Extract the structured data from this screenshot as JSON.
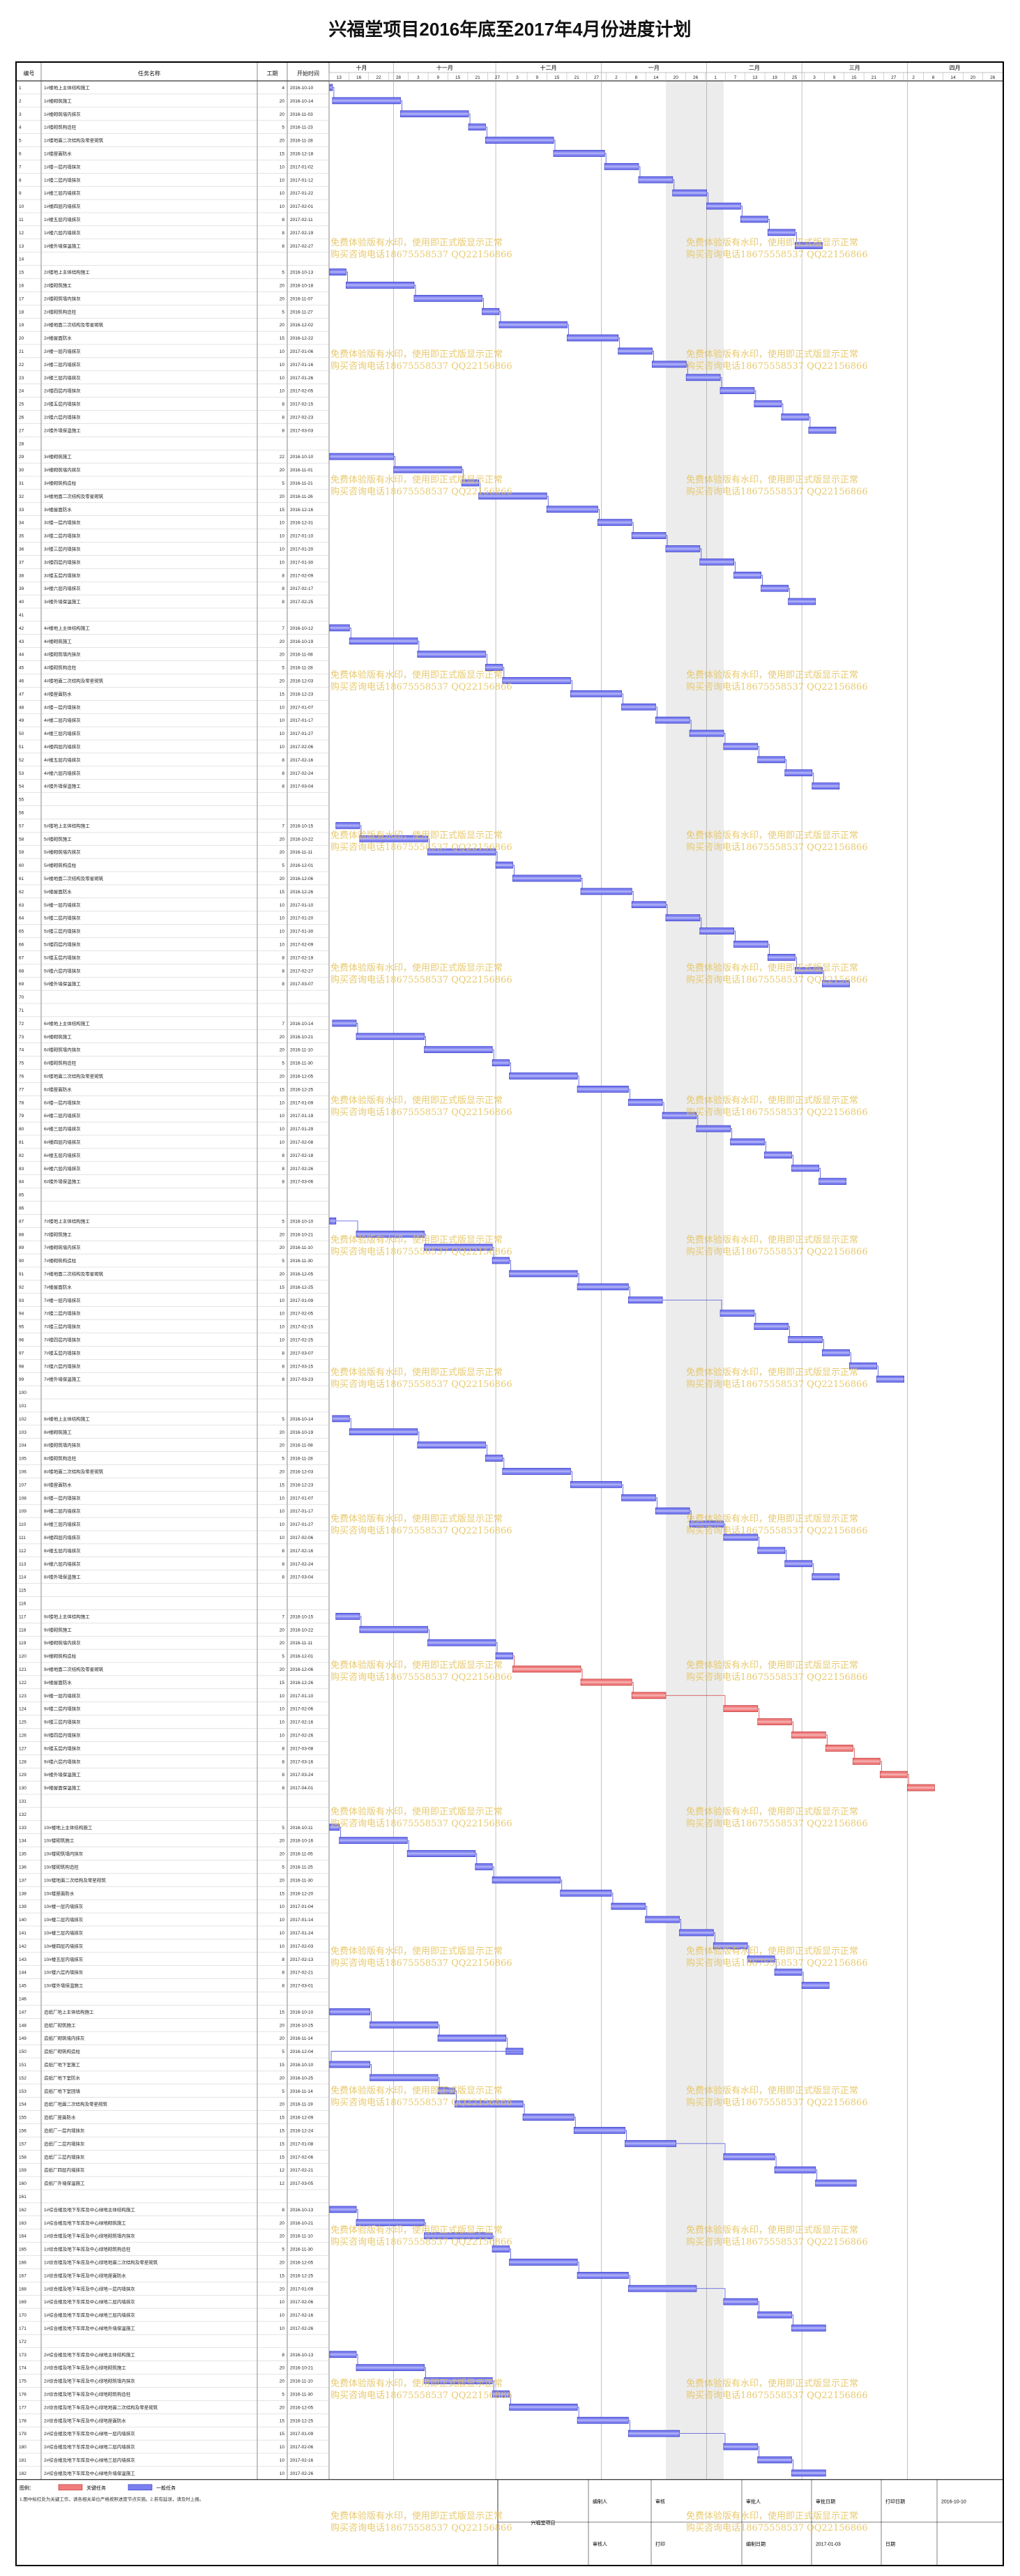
{
  "title": "兴福堂项目2016年底至2017年4月份进度计划",
  "columns": {
    "id": "编号",
    "name": "任务名称",
    "duration": "工期",
    "start": "开始时间"
  },
  "months": [
    "十月",
    "十一月",
    "十二月",
    "一月",
    "二月",
    "三月",
    "四月"
  ],
  "day_ticks": [
    "13",
    "16",
    "22",
    "28",
    "3",
    "9",
    "15",
    "21",
    "27",
    "3",
    "9",
    "15",
    "21",
    "27",
    "2",
    "8",
    "14",
    "20",
    "26",
    "1",
    "7",
    "13",
    "19",
    "25",
    "3",
    "9",
    "15",
    "21",
    "27",
    "2",
    "8",
    "14",
    "20",
    "26"
  ],
  "watermark": [
    "免费体验版有水印，使用即正式版显示正常",
    "购买咨询电话18675558537 QQ22156866"
  ],
  "colors": {
    "bar_normal": "#7b7ef0",
    "bar_critical": "#f07b7b",
    "nonworking": "#ececec"
  },
  "legend": {
    "label": "图例：",
    "critical_label": "关键任务",
    "normal_label": "一般任务"
  },
  "footer_note": "1.图中标红处为关键工作，请各相关单位严格按照进度节点实施。2.若有延误，请及时上报。",
  "footer": {
    "c1": "编制人",
    "c2": "审核",
    "c3": "审批日期",
    "c4": "打印日期",
    "c5": "2016-10-10",
    "c6": "审批人",
    "c7": "审核人",
    "c8": "编制日期",
    "c9": "2017-01-03",
    "c10": "日期",
    "c11": "打印",
    "center": "兴福堂项目"
  },
  "chart_data": {
    "type": "gantt",
    "title": "兴福堂项目2016年底至2017年4月份进度计划",
    "x_range": [
      "2016-10-13",
      "2017-04-29"
    ],
    "nonworking_band": [
      "2017-01-20",
      "2017-02-06"
    ],
    "groups": [
      {
        "first_id": 1,
        "rows": [
          [
            "1#楼地上主体结构施工",
            4,
            "2016-10-10"
          ],
          [
            "1#楼砌筑施工",
            20,
            "2016-10-14"
          ],
          [
            "1#楼砌筑墙内抹灰",
            20,
            "2016-11-03"
          ],
          [
            "1#楼砌筑构造柱",
            5,
            "2016-11-23"
          ],
          [
            "1#楼地面二次结构及零星砌筑",
            20,
            "2016-11-28"
          ],
          [
            "1#楼屋面防水",
            15,
            "2016-12-18"
          ],
          [
            "1#楼一层内墙抹灰",
            10,
            "2017-01-02"
          ],
          [
            "1#楼二层内墙抹灰",
            10,
            "2017-01-12"
          ],
          [
            "1#楼三层内墙抹灰",
            10,
            "2017-01-22"
          ],
          [
            "1#楼四层内墙抹灰",
            10,
            "2017-02-01"
          ],
          [
            "1#楼五层内墙抹灰",
            8,
            "2017-02-11"
          ],
          [
            "1#楼六层内墙抹灰",
            8,
            "2017-02-19"
          ],
          [
            "1#楼外墙保温施工",
            8,
            "2017-02-27"
          ]
        ]
      },
      {
        "first_id": 15,
        "rows": [
          [
            "2#楼地上主体结构施工",
            5,
            "2016-10-13"
          ],
          [
            "2#楼砌筑施工",
            20,
            "2016-10-18"
          ],
          [
            "2#楼砌筑墙内抹灰",
            20,
            "2016-11-07"
          ],
          [
            "2#楼砌筑构造柱",
            5,
            "2016-11-27"
          ],
          [
            "2#楼地面二次结构及零星砌筑",
            20,
            "2016-12-02"
          ],
          [
            "2#楼屋面防水",
            15,
            "2016-12-22"
          ],
          [
            "2#楼一层内墙抹灰",
            10,
            "2017-01-06"
          ],
          [
            "2#楼二层内墙抹灰",
            10,
            "2017-01-16"
          ],
          [
            "2#楼三层内墙抹灰",
            10,
            "2017-01-26"
          ],
          [
            "2#楼四层内墙抹灰",
            10,
            "2017-02-05"
          ],
          [
            "2#楼五层内墙抹灰",
            8,
            "2017-02-15"
          ],
          [
            "2#楼六层内墙抹灰",
            8,
            "2017-02-23"
          ],
          [
            "2#楼外墙保温施工",
            8,
            "2017-03-03"
          ]
        ]
      },
      {
        "first_id": 29,
        "rows": [
          [
            "3#楼砌筑施工",
            22,
            "2016-10-10"
          ],
          [
            "3#楼砌筑墙内抹灰",
            20,
            "2016-11-01"
          ],
          [
            "3#楼砌筑构造柱",
            5,
            "2016-11-21"
          ],
          [
            "3#楼地面二次结构及零星砌筑",
            20,
            "2016-11-26"
          ],
          [
            "3#楼屋面防水",
            15,
            "2016-12-16"
          ],
          [
            "3#楼一层内墙抹灰",
            10,
            "2016-12-31"
          ],
          [
            "3#楼二层内墙抹灰",
            10,
            "2017-01-10"
          ],
          [
            "3#楼三层内墙抹灰",
            10,
            "2017-01-20"
          ],
          [
            "3#楼四层内墙抹灰",
            10,
            "2017-01-30"
          ],
          [
            "3#楼五层内墙抹灰",
            8,
            "2017-02-09"
          ],
          [
            "3#楼六层内墙抹灰",
            8,
            "2017-02-17"
          ],
          [
            "3#楼外墙保温施工",
            8,
            "2017-02-25"
          ]
        ]
      },
      {
        "first_id": 42,
        "rows": [
          [
            "4#楼地上主体结构施工",
            7,
            "2016-10-12"
          ],
          [
            "4#楼砌筑施工",
            20,
            "2016-10-19"
          ],
          [
            "4#楼砌筑墙内抹灰",
            20,
            "2016-11-08"
          ],
          [
            "4#楼砌筑构造柱",
            5,
            "2016-11-28"
          ],
          [
            "4#楼地面二次结构及零星砌筑",
            20,
            "2016-12-03"
          ],
          [
            "4#楼屋面防水",
            15,
            "2016-12-23"
          ],
          [
            "4#楼一层内墙抹灰",
            10,
            "2017-01-07"
          ],
          [
            "4#楼二层内墙抹灰",
            10,
            "2017-01-17"
          ],
          [
            "4#楼三层内墙抹灰",
            10,
            "2017-01-27"
          ],
          [
            "4#楼四层内墙抹灰",
            10,
            "2017-02-06"
          ],
          [
            "4#楼五层内墙抹灰",
            8,
            "2017-02-16"
          ],
          [
            "4#楼六层内墙抹灰",
            8,
            "2017-02-24"
          ],
          [
            "4#楼外墙保温施工",
            8,
            "2017-03-04"
          ]
        ]
      },
      {
        "first_id": 57,
        "rows": [
          [
            "5#楼地上主体结构施工",
            7,
            "2016-10-15"
          ],
          [
            "5#楼砌筑施工",
            20,
            "2016-10-22"
          ],
          [
            "5#楼砌筑墙内抹灰",
            20,
            "2016-11-11"
          ],
          [
            "5#楼砌筑构造柱",
            5,
            "2016-12-01"
          ],
          [
            "5#楼地面二次结构及零星砌筑",
            20,
            "2016-12-06"
          ],
          [
            "5#楼屋面防水",
            15,
            "2016-12-26"
          ],
          [
            "5#楼一层内墙抹灰",
            10,
            "2017-01-10"
          ],
          [
            "5#楼二层内墙抹灰",
            10,
            "2017-01-20"
          ],
          [
            "5#楼三层内墙抹灰",
            10,
            "2017-01-30"
          ],
          [
            "5#楼四层内墙抹灰",
            10,
            "2017-02-09"
          ],
          [
            "5#楼五层内墙抹灰",
            8,
            "2017-02-19"
          ],
          [
            "5#楼六层内墙抹灰",
            8,
            "2017-02-27"
          ],
          [
            "5#楼外墙保温施工",
            8,
            "2017-03-07"
          ]
        ]
      },
      {
        "first_id": 72,
        "rows": [
          [
            "6#楼地上主体结构施工",
            7,
            "2016-10-14"
          ],
          [
            "6#楼砌筑施工",
            20,
            "2016-10-21"
          ],
          [
            "6#楼砌筑墙内抹灰",
            20,
            "2016-11-10"
          ],
          [
            "6#楼砌筑构造柱",
            5,
            "2016-11-30"
          ],
          [
            "6#楼地面二次结构及零星砌筑",
            20,
            "2016-12-05"
          ],
          [
            "6#楼屋面防水",
            15,
            "2016-12-25"
          ],
          [
            "6#楼一层内墙抹灰",
            10,
            "2017-01-09"
          ],
          [
            "6#楼二层内墙抹灰",
            10,
            "2017-01-19"
          ],
          [
            "6#楼三层内墙抹灰",
            10,
            "2017-01-29"
          ],
          [
            "6#楼四层内墙抹灰",
            10,
            "2017-02-08"
          ],
          [
            "6#楼五层内墙抹灰",
            8,
            "2017-02-18"
          ],
          [
            "6#楼六层内墙抹灰",
            8,
            "2017-02-26"
          ],
          [
            "6#楼外墙保温施工",
            8,
            "2017-03-06"
          ]
        ]
      },
      {
        "first_id": 87,
        "rows": [
          [
            "7#楼地上主体结构施工",
            5,
            "2016-10-10"
          ],
          [
            "7#楼砌筑施工",
            20,
            "2016-10-21"
          ],
          [
            "7#楼砌筑墙内抹灰",
            20,
            "2016-11-10"
          ],
          [
            "7#楼砌筑构造柱",
            5,
            "2016-11-30"
          ],
          [
            "7#楼地面二次结构及零星砌筑",
            20,
            "2016-12-05"
          ],
          [
            "7#楼屋面防水",
            15,
            "2016-12-25"
          ],
          [
            "7#楼一层内墙抹灰",
            10,
            "2017-01-09"
          ],
          [
            "7#楼二层内墙抹灰",
            10,
            "2017-02-05"
          ],
          [
            "7#楼三层内墙抹灰",
            10,
            "2017-02-15"
          ],
          [
            "7#楼四层内墙抹灰",
            10,
            "2017-02-25"
          ],
          [
            "7#楼五层内墙抹灰",
            8,
            "2017-03-07"
          ],
          [
            "7#楼六层内墙抹灰",
            8,
            "2017-03-15"
          ],
          [
            "7#楼外墙保温施工",
            8,
            "2017-03-23"
          ]
        ]
      },
      {
        "first_id": 102,
        "rows": [
          [
            "8#楼地上主体结构施工",
            5,
            "2016-10-14"
          ],
          [
            "8#楼砌筑施工",
            20,
            "2016-10-19"
          ],
          [
            "8#楼砌筑墙内抹灰",
            20,
            "2016-11-08"
          ],
          [
            "8#楼砌筑构造柱",
            5,
            "2016-11-28"
          ],
          [
            "8#楼地面二次结构及零星砌筑",
            20,
            "2016-12-03"
          ],
          [
            "8#楼屋面防水",
            15,
            "2016-12-23"
          ],
          [
            "8#楼一层内墙抹灰",
            10,
            "2017-01-07"
          ],
          [
            "8#楼二层内墙抹灰",
            10,
            "2017-01-17"
          ],
          [
            "8#楼三层内墙抹灰",
            10,
            "2017-01-27"
          ],
          [
            "8#楼四层内墙抹灰",
            10,
            "2017-02-06"
          ],
          [
            "8#楼五层内墙抹灰",
            8,
            "2017-02-16"
          ],
          [
            "8#楼六层内墙抹灰",
            8,
            "2017-02-24"
          ],
          [
            "8#楼外墙保温施工",
            8,
            "2017-03-04"
          ]
        ]
      },
      {
        "first_id": 117,
        "rows": [
          [
            "9#楼地上主体结构施工",
            7,
            "2016-10-15"
          ],
          [
            "9#楼砌筑施工",
            20,
            "2016-10-22"
          ],
          [
            "9#楼砌筑墙内抹灰",
            20,
            "2016-11-11"
          ],
          [
            "9#楼砌筑构造柱",
            5,
            "2016-12-01"
          ],
          [
            "9#楼地面二次结构及零星砌筑",
            20,
            "2016-12-06",
            true
          ],
          [
            "9#楼屋面防水",
            15,
            "2016-12-26",
            true
          ],
          [
            "9#楼一层内墙抹灰",
            10,
            "2017-01-10",
            true
          ],
          [
            "9#楼二层内墙抹灰",
            10,
            "2017-02-06",
            true
          ],
          [
            "9#楼三层内墙抹灰",
            10,
            "2017-02-16",
            true
          ],
          [
            "9#楼四层内墙抹灰",
            10,
            "2017-02-26",
            true
          ],
          [
            "9#楼五层内墙抹灰",
            8,
            "2017-03-08",
            true
          ],
          [
            "9#楼六层内墙抹灰",
            8,
            "2017-03-16",
            true
          ],
          [
            "9#楼外墙保温施工",
            8,
            "2017-03-24",
            true
          ],
          [
            "9#楼屋面保温施工",
            8,
            "2017-04-01",
            true
          ]
        ]
      },
      {
        "first_id": 133,
        "rows": [
          [
            "10#楼地上主体结构施工",
            5,
            "2016-10-11"
          ],
          [
            "10#楼砌筑施工",
            20,
            "2016-10-16"
          ],
          [
            "10#楼砌筑墙内抹灰",
            20,
            "2016-11-05"
          ],
          [
            "10#楼砌筑构造柱",
            5,
            "2016-11-25"
          ],
          [
            "10#楼地面二次结构及零星砌筑",
            20,
            "2016-11-30"
          ],
          [
            "10#楼屋面防水",
            15,
            "2016-12-20"
          ],
          [
            "10#楼一层内墙抹灰",
            10,
            "2017-01-04"
          ],
          [
            "10#楼二层内墙抹灰",
            10,
            "2017-01-14"
          ],
          [
            "10#楼三层内墙抹灰",
            10,
            "2017-01-24"
          ],
          [
            "10#楼四层内墙抹灰",
            10,
            "2017-02-03"
          ],
          [
            "10#楼五层内墙抹灰",
            8,
            "2017-02-13"
          ],
          [
            "10#楼六层内墙抹灰",
            8,
            "2017-02-21"
          ],
          [
            "10#楼外墙保温施工",
            8,
            "2017-03-01"
          ]
        ]
      },
      {
        "first_id": 147,
        "rows": [
          [
            "造纸厂地上主体结构施工",
            15,
            "2016-10-10"
          ],
          [
            "造纸厂砌筑施工",
            20,
            "2016-10-25"
          ],
          [
            "造纸厂砌筑墙内抹灰",
            20,
            "2016-11-14"
          ],
          [
            "造纸厂砌筑构造柱",
            5,
            "2016-12-04"
          ],
          [
            "造纸厂地下室施工",
            15,
            "2016-10-10"
          ],
          [
            "造纸厂地下室防水",
            20,
            "2016-10-25"
          ],
          [
            "造纸厂地下室回填",
            5,
            "2016-11-14"
          ],
          [
            "造纸厂地面二次结构及零星砌筑",
            20,
            "2016-11-19"
          ],
          [
            "造纸厂屋面防水",
            15,
            "2016-12-09"
          ],
          [
            "造纸厂一层内墙抹灰",
            15,
            "2016-12-24"
          ],
          [
            "造纸厂二层内墙抹灰",
            15,
            "2017-01-08"
          ],
          [
            "造纸厂三层内墙抹灰",
            15,
            "2017-02-06"
          ],
          [
            "造纸厂四层内墙抹灰",
            12,
            "2017-02-21"
          ],
          [
            "造纸厂外墙保温施工",
            12,
            "2017-03-05"
          ]
        ]
      },
      {
        "first_id": 162,
        "rows": [
          [
            "1#综合楼及地下车库及中心绿地主体结构施工",
            8,
            "2016-10-13"
          ],
          [
            "1#综合楼及地下车库及中心绿地砌筑施工",
            20,
            "2016-10-21"
          ],
          [
            "1#综合楼及地下车库及中心绿地砌筑墙内抹灰",
            20,
            "2016-11-10"
          ],
          [
            "1#综合楼及地下车库及中心绿地砌筑构造柱",
            5,
            "2016-11-30"
          ],
          [
            "1#综合楼及地下车库及中心绿地地面二次结构及零星砌筑",
            20,
            "2016-12-05"
          ],
          [
            "1#综合楼及地下车库及中心绿地屋面防水",
            15,
            "2016-12-25"
          ],
          [
            "1#综合楼及地下车库及中心绿地一层内墙抹灰",
            20,
            "2017-01-09"
          ],
          [
            "1#综合楼及地下车库及中心绿地二层内墙抹灰",
            10,
            "2017-02-06"
          ],
          [
            "1#综合楼及地下车库及中心绿地三层内墙抹灰",
            10,
            "2017-02-16"
          ],
          [
            "1#综合楼及地下车库及中心绿地外墙保温施工",
            10,
            "2017-02-26"
          ]
        ]
      },
      {
        "first_id": 173,
        "rows": [
          [
            "2#综合楼及地下车库及中心绿地主体结构施工",
            8,
            "2016-10-13"
          ],
          [
            "2#综合楼及地下车库及中心绿地砌筑施工",
            20,
            "2016-10-21"
          ],
          [
            "2#综合楼及地下车库及中心绿地砌筑墙内抹灰",
            20,
            "2016-11-10"
          ],
          [
            "2#综合楼及地下车库及中心绿地砌筑构造柱",
            5,
            "2016-11-30"
          ],
          [
            "2#综合楼及地下车库及中心绿地地面二次结构及零星砌筑",
            20,
            "2016-12-05"
          ],
          [
            "2#综合楼及地下车库及中心绿地屋面防水",
            15,
            "2016-12-25"
          ],
          [
            "2#综合楼及地下车库及中心绿地一层内墙抹灰",
            15,
            "2017-01-09"
          ],
          [
            "2#综合楼及地下车库及中心绿地二层内墙抹灰",
            10,
            "2017-02-06"
          ],
          [
            "2#综合楼及地下车库及中心绿地三层内墙抹灰",
            10,
            "2017-02-16"
          ],
          [
            "2#综合楼及地下车库及中心绿地外墙保温施工",
            10,
            "2017-02-26"
          ]
        ]
      }
    ]
  }
}
